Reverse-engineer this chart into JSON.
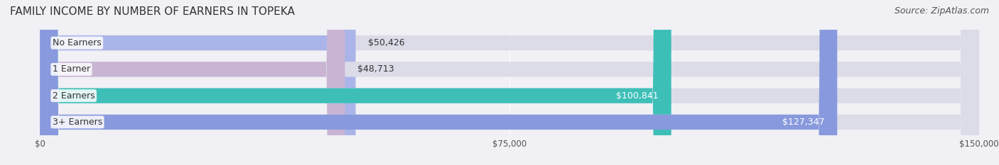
{
  "title": "FAMILY INCOME BY NUMBER OF EARNERS IN TOPEKA",
  "source": "Source: ZipAtlas.com",
  "categories": [
    "No Earners",
    "1 Earner",
    "2 Earners",
    "3+ Earners"
  ],
  "values": [
    50426,
    48713,
    100841,
    127347
  ],
  "bar_colors": [
    "#aab4e8",
    "#c9b4d4",
    "#3dbfb8",
    "#8899dd"
  ],
  "bar_bg_color": "#e8e8ee",
  "value_labels": [
    "$50,426",
    "$48,713",
    "$100,841",
    "$127,347"
  ],
  "xlim": [
    0,
    150000
  ],
  "xticks": [
    0,
    75000,
    150000
  ],
  "xticklabels": [
    "$0",
    "$75,000",
    "$150,000"
  ],
  "title_fontsize": 11,
  "source_fontsize": 9,
  "label_fontsize": 9,
  "value_fontsize": 9,
  "background_color": "#f0f0f5",
  "bar_background_color": "#dcdce8"
}
